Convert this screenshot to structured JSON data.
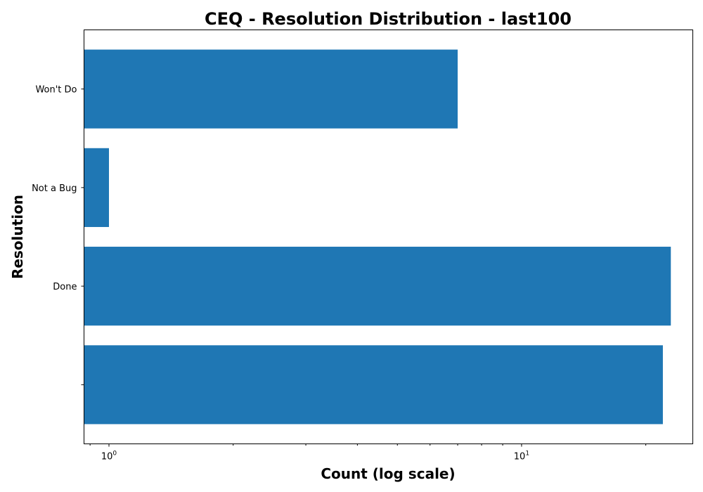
{
  "chart_data": {
    "type": "bar",
    "orientation": "horizontal",
    "title": "CEQ - Resolution Distribution - last100",
    "xlabel": "Count (log scale)",
    "ylabel": "Resolution",
    "x_scale": "log",
    "xlim": [
      0.87,
      26
    ],
    "categories": [
      "",
      "Done",
      "Not a Bug",
      "Won't Do"
    ],
    "values": [
      22,
      23,
      1,
      7
    ],
    "x_ticks": [
      {
        "base": "10",
        "exp": "0",
        "value": 1
      },
      {
        "base": "10",
        "exp": "1",
        "value": 10
      }
    ],
    "bar_color": "#1f77b4",
    "grid": false,
    "legend": "none"
  }
}
